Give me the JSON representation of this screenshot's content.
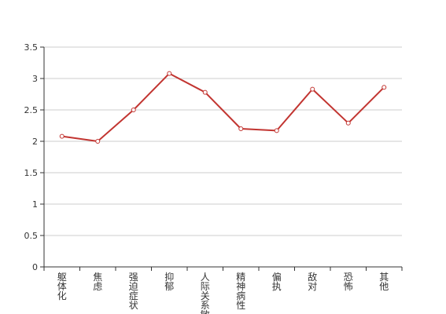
{
  "chart_data": {
    "type": "line",
    "categories": [
      "躯体化",
      "焦虑",
      "强迫症状",
      "抑郁",
      "人际关系敏感",
      "精神病性",
      "偏执",
      "敌对",
      "恐怖",
      "其他"
    ],
    "series": [
      {
        "values": [
          2.08,
          2.0,
          2.5,
          3.08,
          2.78,
          2.2,
          2.17,
          2.83,
          2.29,
          2.86
        ]
      }
    ],
    "ylim": [
      0,
      3.5
    ],
    "yticks": [
      "0",
      "0.5",
      "1",
      "1.5",
      "2",
      "2.5",
      "3",
      "3.5"
    ],
    "grid": true,
    "colors": {
      "line": "#c23531",
      "grid": "#cccccc",
      "axis": "#333333"
    }
  }
}
